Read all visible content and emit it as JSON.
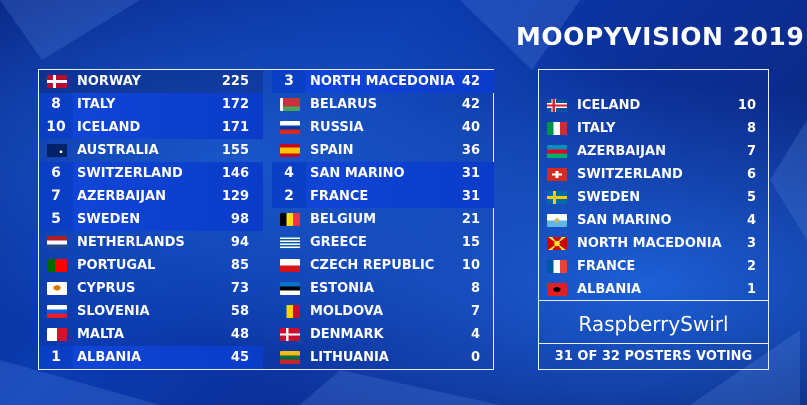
{
  "title": "MOOPYVISION 2019",
  "left_column": [
    {
      "num": "",
      "flag": "norway-flag-icon",
      "country": "NORWAY",
      "score": "225",
      "highlight": false
    },
    {
      "num": "8",
      "flag": "",
      "country": "ITALY",
      "score": "172",
      "highlight": true
    },
    {
      "num": "10",
      "flag": "",
      "country": "ICELAND",
      "score": "171",
      "highlight": true
    },
    {
      "num": "",
      "flag": "australia-flag-icon",
      "country": "AUSTRALIA",
      "score": "155",
      "highlight": false
    },
    {
      "num": "6",
      "flag": "",
      "country": "SWITZERLAND",
      "score": "146",
      "highlight": true
    },
    {
      "num": "7",
      "flag": "",
      "country": "AZERBAIJAN",
      "score": "129",
      "highlight": true
    },
    {
      "num": "5",
      "flag": "",
      "country": "SWEDEN",
      "score": "98",
      "highlight": true
    },
    {
      "num": "",
      "flag": "netherlands-flag-icon",
      "country": "NETHERLANDS",
      "score": "94",
      "highlight": false
    },
    {
      "num": "",
      "flag": "portugal-flag-icon",
      "country": "PORTUGAL",
      "score": "85",
      "highlight": false
    },
    {
      "num": "",
      "flag": "cyprus-flag-icon",
      "country": "CYPRUS",
      "score": "73",
      "highlight": false
    },
    {
      "num": "",
      "flag": "slovenia-flag-icon",
      "country": "SLOVENIA",
      "score": "58",
      "highlight": false
    },
    {
      "num": "",
      "flag": "malta-flag-icon",
      "country": "MALTA",
      "score": "48",
      "highlight": false
    },
    {
      "num": "1",
      "flag": "",
      "country": "ALBANIA",
      "score": "45",
      "highlight": true
    }
  ],
  "right_column": [
    {
      "num": "3",
      "flag": "",
      "country": "NORTH MACEDONIA",
      "score": "42",
      "highlight": true
    },
    {
      "num": "",
      "flag": "belarus-flag-icon",
      "country": "BELARUS",
      "score": "42",
      "highlight": false
    },
    {
      "num": "",
      "flag": "russia-flag-icon",
      "country": "RUSSIA",
      "score": "40",
      "highlight": false
    },
    {
      "num": "",
      "flag": "spain-flag-icon",
      "country": "SPAIN",
      "score": "36",
      "highlight": false
    },
    {
      "num": "4",
      "flag": "",
      "country": "SAN MARINO",
      "score": "31",
      "highlight": true
    },
    {
      "num": "2",
      "flag": "",
      "country": "FRANCE",
      "score": "31",
      "highlight": true
    },
    {
      "num": "",
      "flag": "belgium-flag-icon",
      "country": "BELGIUM",
      "score": "21",
      "highlight": false
    },
    {
      "num": "",
      "flag": "greece-flag-icon",
      "country": "GREECE",
      "score": "15",
      "highlight": false
    },
    {
      "num": "",
      "flag": "czech-flag-icon",
      "country": "CZECH REPUBLIC",
      "score": "10",
      "highlight": false
    },
    {
      "num": "",
      "flag": "estonia-flag-icon",
      "country": "ESTONIA",
      "score": "8",
      "highlight": false
    },
    {
      "num": "",
      "flag": "moldova-flag-icon",
      "country": "MOLDOVA",
      "score": "7",
      "highlight": false
    },
    {
      "num": "",
      "flag": "denmark-flag-icon",
      "country": "DENMARK",
      "score": "4",
      "highlight": false
    },
    {
      "num": "",
      "flag": "lithuania-flag-icon",
      "country": "LITHUANIA",
      "score": "0",
      "highlight": false
    }
  ],
  "points_given": [
    {
      "flag": "iceland-flag-icon",
      "country": "ICELAND",
      "points": "10"
    },
    {
      "flag": "italy-flag-icon",
      "country": "ITALY",
      "points": "8"
    },
    {
      "flag": "azerbaijan-flag-icon",
      "country": "AZERBAIJAN",
      "points": "7"
    },
    {
      "flag": "switzerland-flag-icon",
      "country": "SWITZERLAND",
      "points": "6"
    },
    {
      "flag": "sweden-flag-icon",
      "country": "SWEDEN",
      "points": "5"
    },
    {
      "flag": "san-marino-flag-icon",
      "country": "SAN MARINO",
      "points": "4"
    },
    {
      "flag": "north-macedonia-flag-icon",
      "country": "NORTH MACEDONIA",
      "points": "3"
    },
    {
      "flag": "france-flag-icon",
      "country": "FRANCE",
      "points": "2"
    },
    {
      "flag": "albania-flag-icon",
      "country": "ALBANIA",
      "points": "1"
    }
  ],
  "voter": "RaspberrySwirl",
  "voting_status": "31 OF 32 POSTERS VOTING",
  "colors": {
    "background": "#0b2a8a",
    "highlight": "#0a3ec4",
    "border": "#e8eefc"
  }
}
